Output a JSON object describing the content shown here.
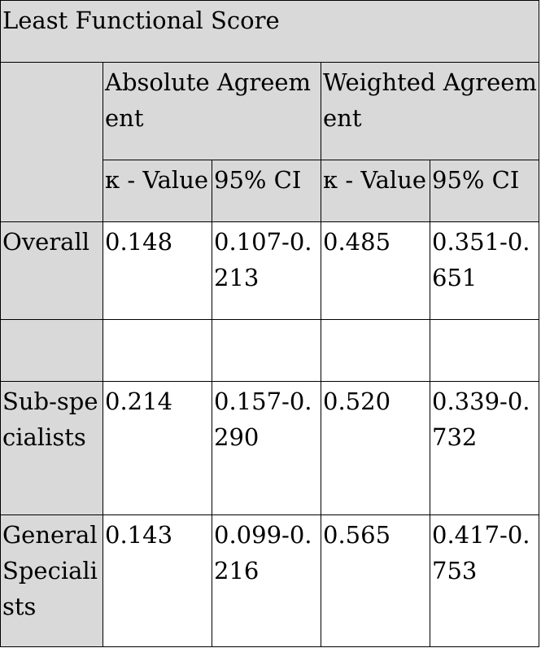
{
  "table": {
    "title": "Least Functional Score",
    "groups": [
      "Absolute Agreement",
      "Weighted Agreement"
    ],
    "subheaders": [
      "κ - Value",
      "95% CI",
      "κ - Value",
      "95% CI"
    ],
    "rows": [
      {
        "label": "Overall",
        "cells": [
          "0.148",
          "0.107-0.213",
          "0.485",
          "0.351-0.651"
        ]
      },
      {
        "label": "",
        "cells": [
          "",
          "",
          "",
          ""
        ]
      },
      {
        "label": "Sub-specialists",
        "cells": [
          "0.214",
          "0.157-0.290",
          "0.520",
          "0.339-0.732"
        ]
      },
      {
        "label": "General Specialists",
        "cells": [
          "0.143",
          "0.099-0.216",
          "0.565",
          "0.417-0.753"
        ]
      }
    ]
  }
}
